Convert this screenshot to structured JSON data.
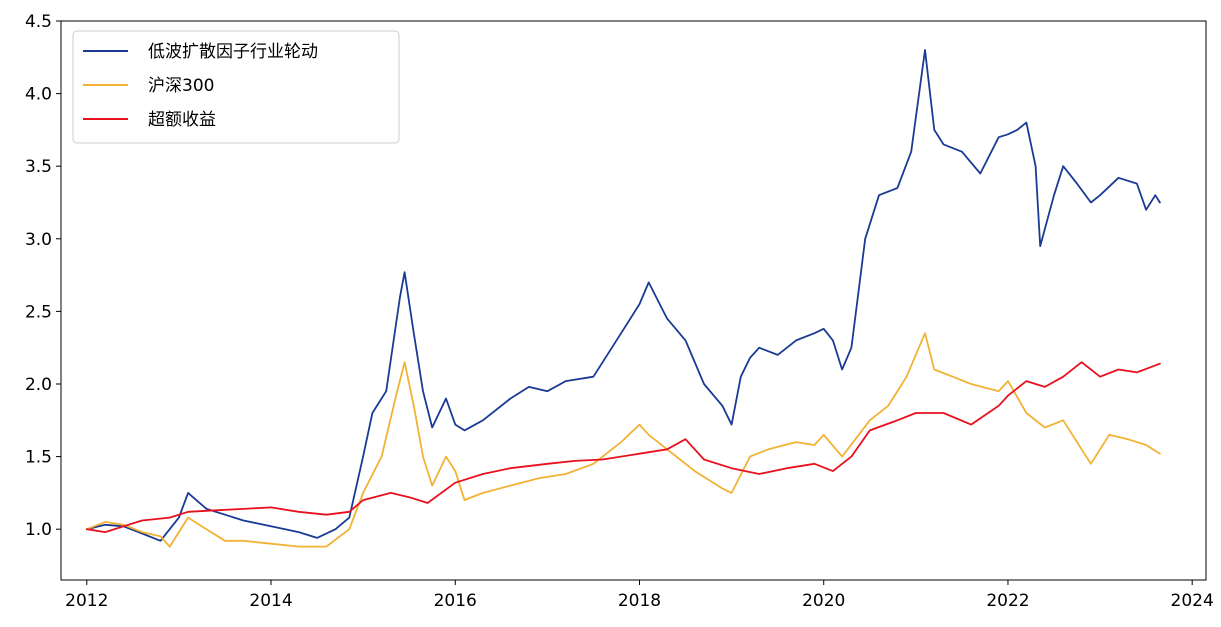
{
  "chart_data": {
    "type": "line",
    "title": "",
    "xlabel": "",
    "ylabel": "",
    "xlim": [
      2011.72,
      2024.15
    ],
    "ylim": [
      0.65,
      4.5
    ],
    "x_ticks": [
      2012,
      2014,
      2016,
      2018,
      2020,
      2022,
      2024
    ],
    "x_tick_labels": [
      "2012",
      "2014",
      "2016",
      "2018",
      "2020",
      "2022",
      "2024"
    ],
    "y_ticks": [
      1.0,
      1.5,
      2.0,
      2.5,
      3.0,
      3.5,
      4.0,
      4.5
    ],
    "y_tick_labels": [
      "1.0",
      "1.5",
      "2.0",
      "2.5",
      "3.0",
      "3.5",
      "4.0",
      "4.5"
    ],
    "grid": false,
    "legend_position": "top-left",
    "series": [
      {
        "name": "低波扩散因子行业轮动",
        "color": "#1a3a94",
        "x": [
          2012.0,
          2012.2,
          2012.4,
          2012.6,
          2012.8,
          2013.0,
          2013.1,
          2013.3,
          2013.5,
          2013.7,
          2014.0,
          2014.3,
          2014.5,
          2014.7,
          2014.85,
          2015.0,
          2015.1,
          2015.25,
          2015.4,
          2015.45,
          2015.55,
          2015.65,
          2015.75,
          2015.9,
          2016.0,
          2016.1,
          2016.3,
          2016.6,
          2016.8,
          2017.0,
          2017.2,
          2017.5,
          2017.8,
          2018.0,
          2018.1,
          2018.3,
          2018.5,
          2018.7,
          2018.9,
          2019.0,
          2019.1,
          2019.2,
          2019.3,
          2019.5,
          2019.7,
          2019.9,
          2020.0,
          2020.1,
          2020.2,
          2020.3,
          2020.45,
          2020.6,
          2020.8,
          2020.95,
          2021.1,
          2021.2,
          2021.3,
          2021.5,
          2021.7,
          2021.9,
          2022.0,
          2022.1,
          2022.2,
          2022.3,
          2022.35,
          2022.5,
          2022.6,
          2022.75,
          2022.9,
          2023.0,
          2023.2,
          2023.4,
          2023.5,
          2023.6,
          2023.65
        ],
        "y": [
          1.0,
          1.03,
          1.02,
          0.97,
          0.92,
          1.08,
          1.25,
          1.14,
          1.1,
          1.06,
          1.02,
          0.98,
          0.94,
          1.0,
          1.08,
          1.5,
          1.8,
          1.95,
          2.6,
          2.77,
          2.35,
          1.95,
          1.7,
          1.9,
          1.72,
          1.68,
          1.75,
          1.9,
          1.98,
          1.95,
          2.02,
          2.05,
          2.35,
          2.55,
          2.7,
          2.45,
          2.3,
          2.0,
          1.85,
          1.72,
          2.05,
          2.18,
          2.25,
          2.2,
          2.3,
          2.35,
          2.38,
          2.3,
          2.1,
          2.25,
          3.0,
          3.3,
          3.35,
          3.6,
          4.3,
          3.75,
          3.65,
          3.6,
          3.45,
          3.7,
          3.72,
          3.75,
          3.8,
          3.5,
          2.95,
          3.3,
          3.5,
          3.38,
          3.25,
          3.3,
          3.42,
          3.38,
          3.2,
          3.3,
          3.25
        ]
      },
      {
        "name": "沪深300",
        "color": "#f2b233",
        "x": [
          2012.0,
          2012.2,
          2012.4,
          2012.6,
          2012.8,
          2012.9,
          2013.1,
          2013.3,
          2013.5,
          2013.7,
          2014.0,
          2014.3,
          2014.6,
          2014.85,
          2015.0,
          2015.2,
          2015.35,
          2015.45,
          2015.55,
          2015.65,
          2015.75,
          2015.9,
          2016.0,
          2016.1,
          2016.3,
          2016.6,
          2016.9,
          2017.2,
          2017.5,
          2017.8,
          2018.0,
          2018.1,
          2018.3,
          2018.6,
          2018.9,
          2019.0,
          2019.2,
          2019.4,
          2019.7,
          2019.9,
          2020.0,
          2020.2,
          2020.5,
          2020.7,
          2020.9,
          2021.1,
          2021.2,
          2021.4,
          2021.6,
          2021.9,
          2022.0,
          2022.2,
          2022.4,
          2022.6,
          2022.8,
          2022.9,
          2023.1,
          2023.3,
          2023.5,
          2023.65
        ],
        "y": [
          1.0,
          1.05,
          1.03,
          0.98,
          0.95,
          0.88,
          1.08,
          1.0,
          0.92,
          0.92,
          0.9,
          0.88,
          0.88,
          1.0,
          1.25,
          1.5,
          1.9,
          2.15,
          1.85,
          1.5,
          1.3,
          1.5,
          1.4,
          1.2,
          1.25,
          1.3,
          1.35,
          1.38,
          1.45,
          1.6,
          1.72,
          1.65,
          1.55,
          1.4,
          1.28,
          1.25,
          1.5,
          1.55,
          1.6,
          1.58,
          1.65,
          1.5,
          1.75,
          1.85,
          2.05,
          2.35,
          2.1,
          2.05,
          2.0,
          1.95,
          2.02,
          1.8,
          1.7,
          1.75,
          1.55,
          1.45,
          1.65,
          1.62,
          1.58,
          1.52
        ]
      },
      {
        "name": "超额收益",
        "color": "#e8101e",
        "x": [
          2012.0,
          2012.2,
          2012.4,
          2012.6,
          2012.9,
          2013.1,
          2013.4,
          2013.7,
          2014.0,
          2014.3,
          2014.6,
          2014.85,
          2015.0,
          2015.3,
          2015.5,
          2015.7,
          2016.0,
          2016.3,
          2016.6,
          2017.0,
          2017.3,
          2017.6,
          2018.0,
          2018.3,
          2018.5,
          2018.7,
          2019.0,
          2019.3,
          2019.6,
          2019.9,
          2020.1,
          2020.3,
          2020.5,
          2020.8,
          2021.0,
          2021.3,
          2021.6,
          2021.9,
          2022.0,
          2022.2,
          2022.4,
          2022.6,
          2022.8,
          2023.0,
          2023.2,
          2023.4,
          2023.65
        ],
        "y": [
          1.0,
          0.98,
          1.02,
          1.06,
          1.08,
          1.12,
          1.13,
          1.14,
          1.15,
          1.12,
          1.1,
          1.12,
          1.2,
          1.25,
          1.22,
          1.18,
          1.32,
          1.38,
          1.42,
          1.45,
          1.47,
          1.48,
          1.52,
          1.55,
          1.62,
          1.48,
          1.42,
          1.38,
          1.42,
          1.45,
          1.4,
          1.5,
          1.68,
          1.75,
          1.8,
          1.8,
          1.72,
          1.85,
          1.92,
          2.02,
          1.98,
          2.05,
          2.15,
          2.05,
          2.1,
          2.08,
          2.14
        ]
      }
    ]
  }
}
